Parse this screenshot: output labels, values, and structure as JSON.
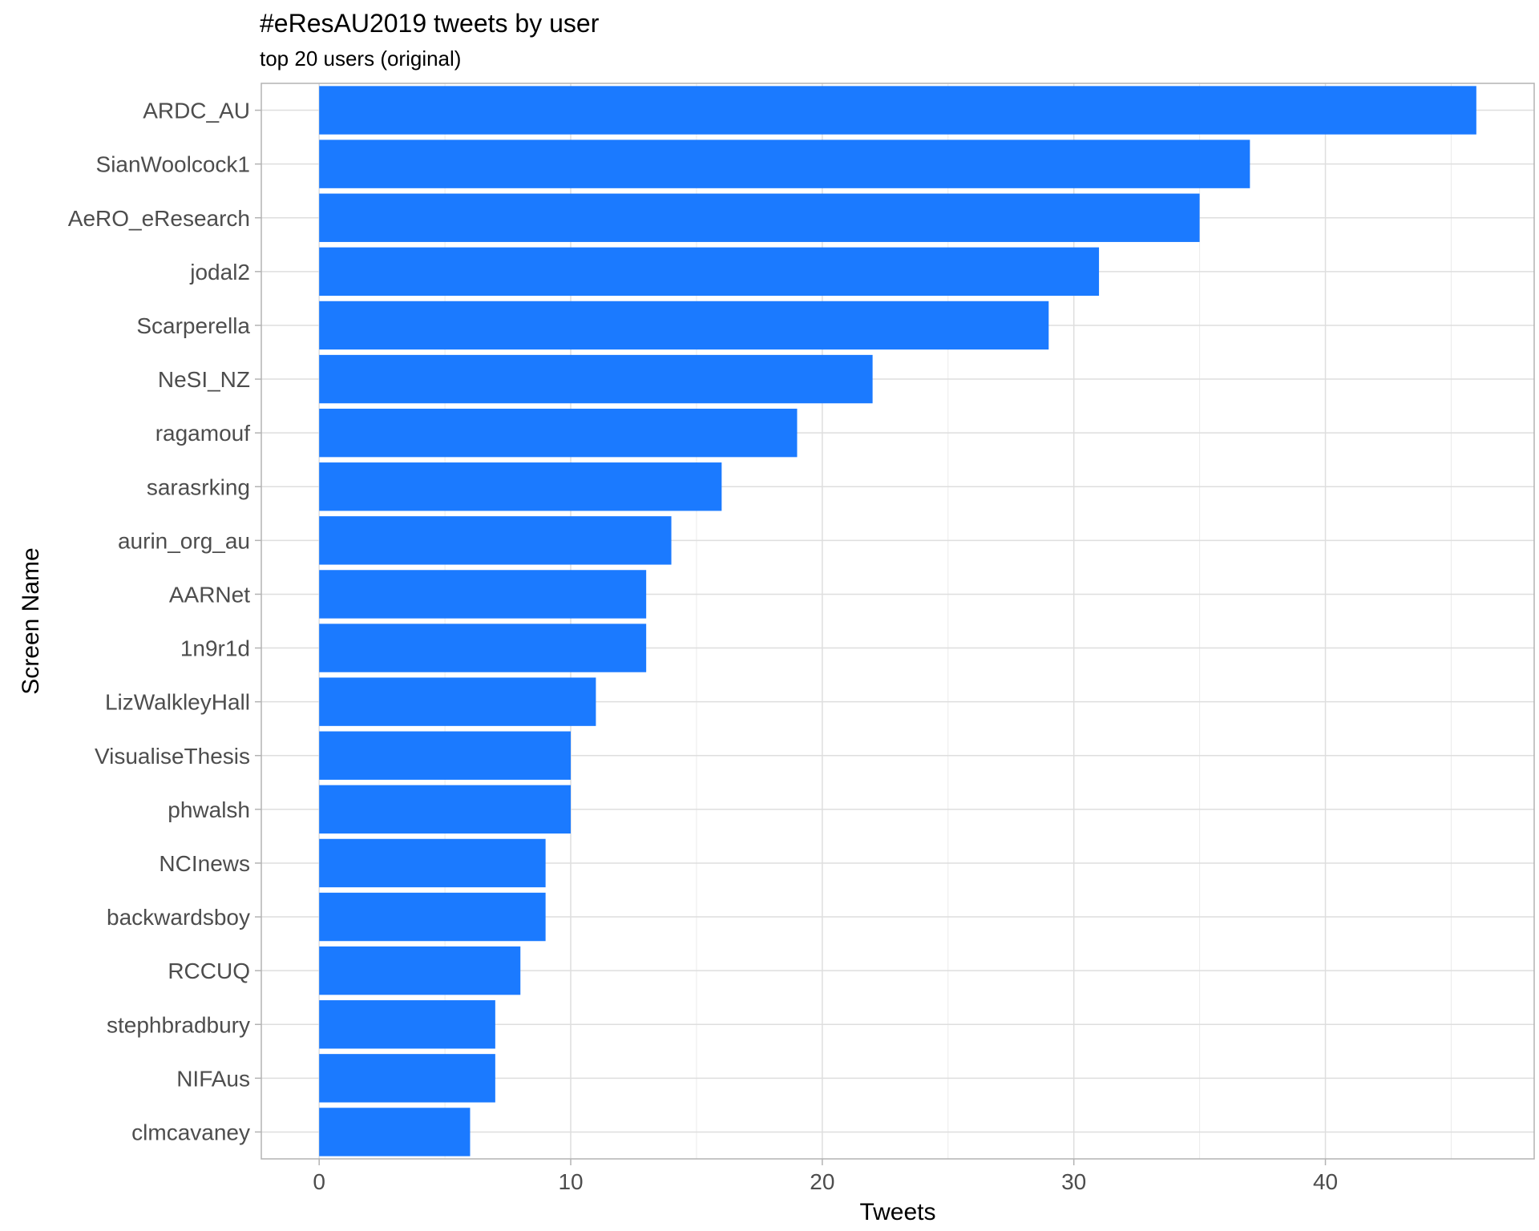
{
  "chart_data": {
    "type": "bar",
    "orientation": "horizontal",
    "title": "#eResAU2019 tweets by user",
    "subtitle": "top 20 users (original)",
    "xlabel": "Tweets",
    "ylabel": "Screen Name",
    "categories": [
      "ARDC_AU",
      "SianWoolcock1",
      "AeRO_eResearch",
      "jodal2",
      "Scarperella",
      "NeSI_NZ",
      "ragamouf",
      "sarasrking",
      "aurin_org_au",
      "AARNet",
      "1n9r1d",
      "LizWalkleyHall",
      "VisualiseThesis",
      "phwalsh",
      "NCInews",
      "backwardsboy",
      "RCCUQ",
      "stephbradbury",
      "NIFAus",
      "clmcavaney"
    ],
    "values": [
      46,
      37,
      35,
      31,
      29,
      22,
      19,
      16,
      14,
      13,
      13,
      11,
      10,
      10,
      9,
      9,
      8,
      7,
      7,
      6
    ],
    "xticks": [
      0,
      10,
      20,
      30,
      40
    ],
    "xticks_labels": [
      "0",
      "10",
      "20",
      "30",
      "40"
    ],
    "xlim": [
      -2.3,
      48.3
    ],
    "grid": true,
    "bar_color": "#1b7aff"
  }
}
